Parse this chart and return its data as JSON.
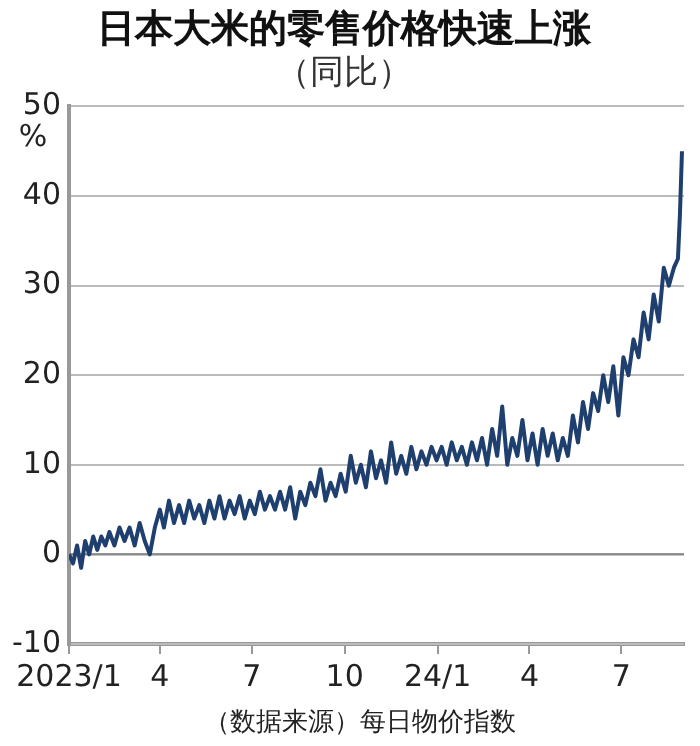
{
  "chart_data": {
    "type": "line",
    "title": "日本大米的零售价格快速上涨",
    "subtitle": "（同比）",
    "ylabel": "%",
    "annotations": [
      "（数据来源）每日物价指数"
    ],
    "xlim": [
      "2023-01-01",
      "2024-09-01"
    ],
    "xticks": [
      {
        "value": "2023-01-01",
        "label": "2023/1"
      },
      {
        "value": "2023-04-01",
        "label": "4"
      },
      {
        "value": "2023-07-01",
        "label": "7"
      },
      {
        "value": "2023-10-01",
        "label": "10"
      },
      {
        "value": "2024-01-01",
        "label": "24/1"
      },
      {
        "value": "2024-04-01",
        "label": "4"
      },
      {
        "value": "2024-07-01",
        "label": "7"
      }
    ],
    "ylim": [
      -10,
      50
    ],
    "yticks": [
      -10,
      0,
      10,
      20,
      30,
      40,
      50
    ],
    "grid": "y",
    "legend": false,
    "marker": "none",
    "line_style": "solid",
    "ref_lines": [
      {
        "axis": "y",
        "value": 0,
        "color": "#888888",
        "line_style": "solid"
      }
    ],
    "series": [
      {
        "color": "#1f3f6e",
        "x": [
          "2023-01-01",
          "2023-01-05",
          "2023-01-09",
          "2023-01-13",
          "2023-01-17",
          "2023-01-21",
          "2023-01-25",
          "2023-01-29",
          "2023-02-02",
          "2023-02-06",
          "2023-02-10",
          "2023-02-15",
          "2023-02-20",
          "2023-02-25",
          "2023-03-02",
          "2023-03-07",
          "2023-03-12",
          "2023-03-17",
          "2023-03-22",
          "2023-03-27",
          "2023-04-01",
          "2023-04-05",
          "2023-04-10",
          "2023-04-15",
          "2023-04-20",
          "2023-04-25",
          "2023-04-30",
          "2023-05-05",
          "2023-05-10",
          "2023-05-15",
          "2023-05-20",
          "2023-05-25",
          "2023-05-30",
          "2023-06-04",
          "2023-06-09",
          "2023-06-14",
          "2023-06-19",
          "2023-06-24",
          "2023-06-29",
          "2023-07-04",
          "2023-07-09",
          "2023-07-14",
          "2023-07-19",
          "2023-07-24",
          "2023-07-29",
          "2023-08-03",
          "2023-08-08",
          "2023-08-13",
          "2023-08-18",
          "2023-08-23",
          "2023-08-28",
          "2023-09-02",
          "2023-09-07",
          "2023-09-12",
          "2023-09-17",
          "2023-09-22",
          "2023-09-27",
          "2023-10-02",
          "2023-10-07",
          "2023-10-12",
          "2023-10-17",
          "2023-10-22",
          "2023-10-27",
          "2023-11-01",
          "2023-11-06",
          "2023-11-11",
          "2023-11-16",
          "2023-11-21",
          "2023-11-26",
          "2023-12-01",
          "2023-12-06",
          "2023-12-11",
          "2023-12-16",
          "2023-12-21",
          "2023-12-26",
          "2023-12-31",
          "2024-01-05",
          "2024-01-10",
          "2024-01-15",
          "2024-01-20",
          "2024-01-25",
          "2024-01-30",
          "2024-02-04",
          "2024-02-09",
          "2024-02-14",
          "2024-02-19",
          "2024-02-24",
          "2024-02-29",
          "2024-03-05",
          "2024-03-10",
          "2024-03-15",
          "2024-03-20",
          "2024-03-25",
          "2024-03-30",
          "2024-04-04",
          "2024-04-09",
          "2024-04-14",
          "2024-04-19",
          "2024-04-24",
          "2024-04-29",
          "2024-05-04",
          "2024-05-09",
          "2024-05-14",
          "2024-05-19",
          "2024-05-24",
          "2024-05-29",
          "2024-06-03",
          "2024-06-08",
          "2024-06-13",
          "2024-06-18",
          "2024-06-23",
          "2024-06-28",
          "2024-07-03",
          "2024-07-08",
          "2024-07-13",
          "2024-07-18",
          "2024-07-23",
          "2024-07-28",
          "2024-08-02",
          "2024-08-07",
          "2024-08-12",
          "2024-08-17",
          "2024-08-22",
          "2024-08-26",
          "2024-08-28",
          "2024-08-30"
        ],
        "values": [
          0,
          -1,
          1,
          -1.5,
          1.5,
          0,
          2,
          0.5,
          2,
          1,
          2.5,
          1,
          3,
          1.5,
          3,
          1,
          3.5,
          1.5,
          0,
          3,
          5,
          3,
          6,
          3.5,
          5.5,
          3.5,
          6,
          4,
          5.5,
          3.5,
          6,
          4,
          6.5,
          4,
          6,
          4.5,
          6.5,
          4,
          6,
          4.5,
          7,
          5,
          6.5,
          5,
          7,
          5,
          7.5,
          4,
          7,
          5.5,
          8,
          6.5,
          9.5,
          6,
          8,
          6.5,
          9,
          7,
          11,
          8,
          10,
          7.5,
          11.5,
          8.5,
          10.5,
          8,
          12.5,
          9,
          11,
          9,
          12,
          9.5,
          11.5,
          10,
          12,
          10.5,
          12,
          10,
          12.5,
          10.5,
          12,
          10,
          12.5,
          10.5,
          13,
          10,
          14,
          11,
          16.5,
          10,
          13,
          11,
          15,
          10.5,
          13.5,
          10,
          14,
          11,
          13.5,
          10.5,
          13,
          11,
          15.5,
          12.5,
          17,
          14,
          18,
          16,
          20,
          17,
          21,
          15.5,
          22,
          20,
          24,
          22,
          27,
          24,
          29,
          26,
          32,
          30,
          32,
          33,
          38,
          45
        ]
      }
    ]
  }
}
